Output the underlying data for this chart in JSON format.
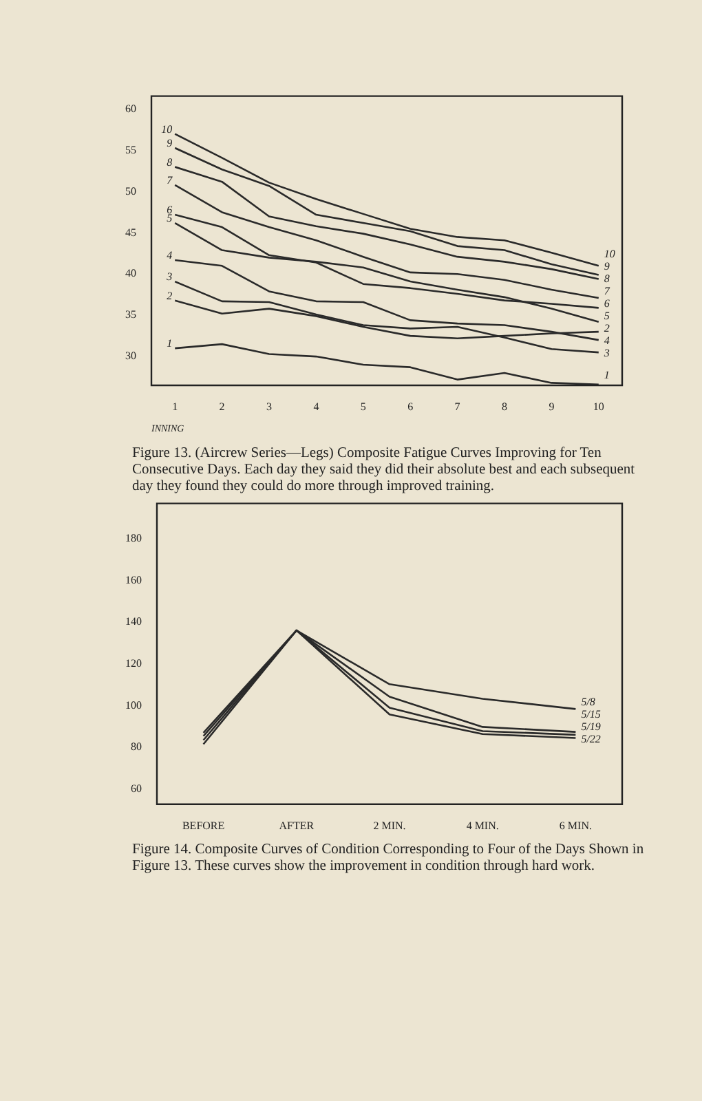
{
  "chart_data": [
    {
      "type": "line",
      "xlabel": "INNING",
      "categories": [
        "1",
        "2",
        "3",
        "4",
        "5",
        "6",
        "7",
        "8",
        "9",
        "10"
      ],
      "ylim": [
        26.5,
        61.6
      ],
      "yticks": [
        30,
        35,
        40,
        45,
        50,
        55,
        60
      ],
      "grid": false,
      "legend": false,
      "marker": "none",
      "line_style": "solid",
      "series": [
        {
          "name": "10",
          "color": "#2a2a2a",
          "values": [
            57.0,
            54.1,
            51.1,
            49.1,
            47.3,
            45.5,
            44.5,
            44.1,
            42.6,
            41.0
          ]
        },
        {
          "name": "9",
          "color": "#2a2a2a",
          "values": [
            55.3,
            52.7,
            50.7,
            47.2,
            46.2,
            45.2,
            43.4,
            42.9,
            41.2,
            39.9
          ]
        },
        {
          "name": "8",
          "color": "#2a2a2a",
          "values": [
            53.0,
            51.2,
            47.0,
            45.8,
            44.9,
            43.6,
            42.1,
            41.5,
            40.6,
            39.4
          ]
        },
        {
          "name": "7",
          "color": "#2a2a2a",
          "values": [
            50.8,
            47.5,
            45.7,
            44.1,
            42.1,
            40.2,
            40.0,
            39.3,
            38.1,
            37.1
          ]
        },
        {
          "name": "6",
          "color": "#2a2a2a",
          "values": [
            47.2,
            45.7,
            42.3,
            41.4,
            38.8,
            38.3,
            37.6,
            36.8,
            36.4,
            35.9
          ]
        },
        {
          "name": "5",
          "color": "#2a2a2a",
          "values": [
            46.2,
            42.9,
            42.0,
            41.5,
            40.8,
            39.1,
            38.1,
            37.2,
            35.8,
            34.2
          ]
        },
        {
          "name": "4",
          "color": "#2a2a2a",
          "values": [
            41.7,
            41.0,
            37.9,
            36.7,
            36.6,
            34.4,
            34.0,
            33.8,
            33.0,
            32.0
          ]
        },
        {
          "name": "3",
          "color": "#2a2a2a",
          "values": [
            39.1,
            36.7,
            36.6,
            35.1,
            33.8,
            33.4,
            33.6,
            32.3,
            30.9,
            30.5
          ]
        },
        {
          "name": "2",
          "color": "#2a2a2a",
          "values": [
            36.8,
            35.2,
            35.8,
            34.9,
            33.6,
            32.5,
            32.2,
            32.5,
            32.8,
            33.0
          ]
        },
        {
          "name": "1",
          "color": "#2a2a2a",
          "values": [
            31.0,
            31.5,
            30.3,
            30.0,
            29.0,
            28.7,
            27.2,
            28.0,
            26.8,
            26.6
          ]
        }
      ],
      "annotations": [
        "Figure 13. (Aircrew Series—Legs) Composite Fatigue Curves Improving for Ten Consecutive Days. Each day they said they did their absolute best and each subsequent day they found they could do more through improved training."
      ]
    },
    {
      "type": "line",
      "categories": [
        "BEFORE",
        "AFTER",
        "2 MIN.",
        "4 MIN.",
        "6 MIN."
      ],
      "ylim": [
        52.7,
        197
      ],
      "yticks": [
        60,
        80,
        100,
        120,
        140,
        160,
        180
      ],
      "grid": false,
      "legend": false,
      "marker": "none",
      "line_style": "solid",
      "series": [
        {
          "name": "5/8",
          "color": "#2a2a2a",
          "values": [
            87.0,
            136.1,
            110.3,
            103.3,
            98.4
          ]
        },
        {
          "name": "5/15",
          "color": "#2a2a2a",
          "values": [
            85.4,
            136.1,
            104.3,
            89.8,
            87.4
          ]
        },
        {
          "name": "5/19",
          "color": "#2a2a2a",
          "values": [
            83.5,
            136.1,
            99.0,
            87.8,
            86.0
          ]
        },
        {
          "name": "5/22",
          "color": "#2a2a2a",
          "values": [
            81.5,
            136.1,
            95.8,
            86.4,
            84.5
          ]
        }
      ],
      "annotations": [
        "Figure 14. Composite Curves of Condition Corresponding to Four of the Days Shown in Figure 13. These curves show the improvement in condition through hard work."
      ]
    }
  ]
}
